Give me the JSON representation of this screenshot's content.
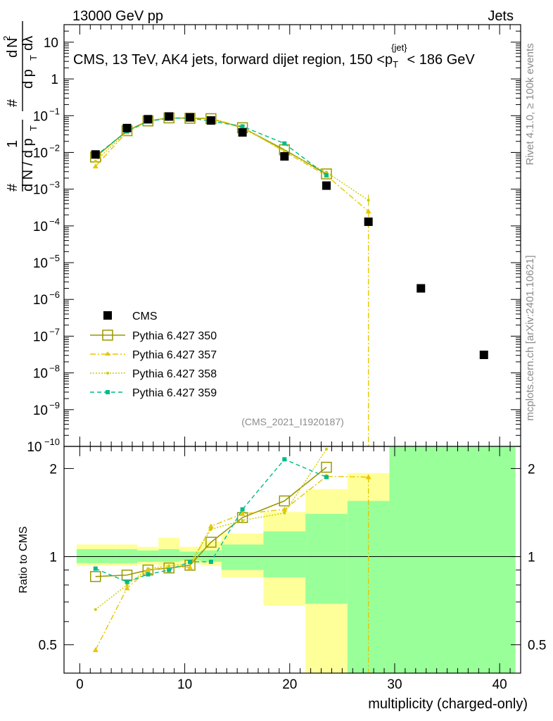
{
  "header": {
    "left": "13000 GeV pp",
    "right": "Jets"
  },
  "side_labels": {
    "rivet": "Rivet 4.1.0, ≥ 100k events",
    "mcplots": "mcplots.cern.ch [arXiv:2401.10621]"
  },
  "colors": {
    "cms": "#000000",
    "p350": "#999900",
    "p357": "#e6c600",
    "p358": "#cccc00",
    "p359": "#00bb88",
    "band_green": "#99ff99",
    "band_yellow": "#ffff99"
  },
  "chart_data": [
    {
      "type": "line",
      "title": "CMS, 13 TeV, AK4 jets, forward dijet region, 150 <p_T^{jet}< 186 GeV",
      "title_main": "CMS, 13 TeV, AK4 jets, forward dijet region, 150 <p",
      "title_sub": "T",
      "title_sup": "{jet}",
      "title_end": "< 186 GeV",
      "ylabel": "1/dN/dp_T d²N/dp_T dλ",
      "ylabel_parts": [
        "#",
        "1",
        "d N / d p",
        "T",
        "#",
        "d",
        "N",
        "d p",
        "T",
        "dλ",
        "2"
      ],
      "yscale": "log",
      "ylim": [
        1e-10,
        30
      ],
      "xlim": [
        -1.5,
        42
      ],
      "y_ticks": [
        {
          "v": 1e-10,
          "base": "10",
          "exp": "−10"
        },
        {
          "v": 1e-09,
          "base": "10",
          "exp": "−9"
        },
        {
          "v": 1e-08,
          "base": "10",
          "exp": "−8"
        },
        {
          "v": 1e-07,
          "base": "10",
          "exp": "−7"
        },
        {
          "v": 1e-06,
          "base": "10",
          "exp": "−6"
        },
        {
          "v": 1e-05,
          "base": "10",
          "exp": "−5"
        },
        {
          "v": 0.0001,
          "base": "10",
          "exp": "−4"
        },
        {
          "v": 0.001,
          "base": "10",
          "exp": "−3"
        },
        {
          "v": 0.01,
          "base": "10",
          "exp": "−2"
        },
        {
          "v": 0.1,
          "base": "10",
          "exp": "−1"
        },
        {
          "v": 1,
          "base": "1",
          "exp": ""
        },
        {
          "v": 10,
          "base": "10",
          "exp": ""
        }
      ],
      "watermark": "(CMS_2021_I1920187)",
      "legend_position": "middle-left",
      "legend": [
        {
          "key": "cms",
          "label": "CMS"
        },
        {
          "key": "p350",
          "label": "Pythia 6.427 350"
        },
        {
          "key": "p357",
          "label": "Pythia 6.427 357"
        },
        {
          "key": "p358",
          "label": "Pythia 6.427 358"
        },
        {
          "key": "p359",
          "label": "Pythia 6.427 359"
        }
      ],
      "cms": {
        "x": [
          1.5,
          4.5,
          6.5,
          8.5,
          10.5,
          12.5,
          15.5,
          19.5,
          23.5,
          27.5,
          32.5,
          38.5
        ],
        "y": [
          0.0088,
          0.046,
          0.08,
          0.095,
          0.09,
          0.074,
          0.035,
          0.0078,
          0.00125,
          0.00013,
          2e-06,
          3.1e-08
        ]
      },
      "series": [
        {
          "key": "p350",
          "name": "Pythia 6.427 350",
          "x": [
            1.5,
            4.5,
            6.5,
            8.5,
            10.5,
            12.5,
            15.5,
            19.5,
            23.5
          ],
          "y": [
            0.0075,
            0.039,
            0.072,
            0.087,
            0.085,
            0.083,
            0.047,
            0.0118,
            0.0026
          ]
        },
        {
          "key": "p357",
          "name": "Pythia 6.427 357",
          "x": [
            1.5,
            4.5,
            6.5,
            8.5,
            10.5,
            12.5,
            15.5,
            19.5,
            23.5,
            27.5
          ],
          "y": [
            0.0042,
            0.036,
            0.07,
            0.087,
            0.088,
            0.085,
            0.049,
            0.0105,
            0.00235,
            0.00025
          ]
        },
        {
          "key": "p358",
          "name": "Pythia 6.427 358",
          "x": [
            1.5,
            4.5,
            6.5,
            8.5,
            10.5,
            12.5,
            15.5,
            19.5,
            23.5,
            27.5
          ],
          "y": [
            0.0058,
            0.037,
            0.073,
            0.088,
            0.086,
            0.084,
            0.046,
            0.011,
            0.0029,
            0.0005
          ]
        },
        {
          "key": "p359",
          "name": "Pythia 6.427 359",
          "x": [
            1.5,
            4.5,
            6.5,
            8.5,
            10.5,
            12.5,
            15.5,
            19.5,
            23.5
          ],
          "y": [
            0.008,
            0.038,
            0.07,
            0.085,
            0.086,
            0.071,
            0.051,
            0.0175,
            0.0024
          ]
        }
      ]
    },
    {
      "type": "line",
      "title": "Ratio to CMS",
      "xlabel": "multiplicity (charged-only)",
      "ylabel": "Ratio to CMS",
      "yscale": "log",
      "ylim": [
        0.4,
        2.38
      ],
      "xlim": [
        -1.5,
        42
      ],
      "x_ticks": [
        0,
        10,
        20,
        30,
        40
      ],
      "y_ticks": [
        0.5,
        1,
        2
      ],
      "bands": [
        {
          "x0": -0.3,
          "x1": 3.5,
          "g_lo": 0.95,
          "g_hi": 1.06,
          "y_lo": 0.93,
          "y_hi": 1.1
        },
        {
          "x0": 3.5,
          "x1": 5.5,
          "g_lo": 0.95,
          "g_hi": 1.06,
          "y_lo": 0.93,
          "y_hi": 1.1
        },
        {
          "x0": 5.5,
          "x1": 7.5,
          "g_lo": 0.96,
          "g_hi": 1.05,
          "y_lo": 0.94,
          "y_hi": 1.08
        },
        {
          "x0": 7.5,
          "x1": 9.5,
          "g_lo": 0.96,
          "g_hi": 1.06,
          "y_lo": 0.93,
          "y_hi": 1.16
        },
        {
          "x0": 9.5,
          "x1": 11.5,
          "g_lo": 0.97,
          "g_hi": 1.04,
          "y_lo": 0.95,
          "y_hi": 1.08
        },
        {
          "x0": 11.5,
          "x1": 13.5,
          "g_lo": 0.96,
          "g_hi": 1.05,
          "y_lo": 0.93,
          "y_hi": 1.13
        },
        {
          "x0": 13.5,
          "x1": 17.5,
          "g_lo": 0.9,
          "g_hi": 1.1,
          "y_lo": 0.85,
          "y_hi": 1.2
        },
        {
          "x0": 17.5,
          "x1": 21.5,
          "g_lo": 0.85,
          "g_hi": 1.22,
          "y_lo": 0.68,
          "y_hi": 1.42
        },
        {
          "x0": 21.5,
          "x1": 25.5,
          "g_lo": 0.69,
          "g_hi": 1.4,
          "y_lo": 0.4,
          "y_hi": 1.7
        },
        {
          "x0": 25.5,
          "x1": 29.5,
          "g_lo": 0.4,
          "g_hi": 1.55,
          "y_lo": 0.4,
          "y_hi": 1.93
        },
        {
          "x0": 29.5,
          "x1": 41.5,
          "g_lo": 0.4,
          "g_hi": 2.38,
          "y_lo": 0.4,
          "y_hi": 2.38
        }
      ],
      "series": [
        {
          "key": "p350",
          "name": "Pythia 6.427 350",
          "x": [
            1.5,
            4.5,
            6.5,
            8.5,
            10.5,
            12.5,
            15.5,
            19.5,
            23.5
          ],
          "y": [
            0.855,
            0.865,
            0.9,
            0.915,
            0.935,
            1.12,
            1.36,
            1.55,
            2.02
          ]
        },
        {
          "key": "p357",
          "name": "Pythia 6.427 357",
          "x": [
            1.5,
            4.5,
            6.5,
            8.5,
            10.5,
            12.5,
            15.5,
            19.5,
            23.5,
            27.5
          ],
          "y": [
            0.48,
            0.78,
            0.9,
            0.92,
            0.92,
            1.27,
            1.4,
            1.45,
            1.88,
            1.87
          ]
        },
        {
          "key": "p358",
          "name": "Pythia 6.427 358",
          "x": [
            1.5,
            4.5,
            6.5,
            8.5,
            10.5,
            12.5,
            15.5,
            19.5,
            23.5
          ],
          "y": [
            0.66,
            0.8,
            0.91,
            0.93,
            0.95,
            1.24,
            1.33,
            1.41,
            2.33
          ]
        },
        {
          "key": "p359",
          "name": "Pythia 6.427 359",
          "x": [
            1.5,
            4.5,
            6.5,
            8.5,
            10.5,
            12.5,
            15.5,
            19.5,
            23.5
          ],
          "y": [
            0.91,
            0.82,
            0.87,
            0.9,
            0.96,
            0.96,
            1.45,
            2.15,
            1.87
          ]
        }
      ]
    }
  ]
}
